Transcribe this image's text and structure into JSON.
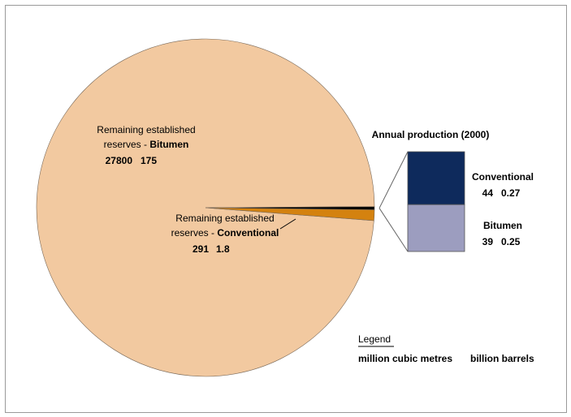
{
  "chart_data": {
    "type": "pie",
    "units": {
      "primary": "million cubic metres",
      "secondary": "billion barrels"
    },
    "slices": [
      {
        "key": "bitumen_reserves",
        "label_line1": "Remaining established",
        "label_prefix": "reserves - ",
        "label_bold": "Bitumen",
        "value": 27800,
        "value_label": "27800",
        "secondary_value": 175,
        "secondary_label": "175",
        "color": "#F2C9A0"
      },
      {
        "key": "conventional_reserves",
        "label_line1": "Remaining established",
        "label_prefix": "reserves - ",
        "label_bold": "Conventional",
        "value": 291,
        "value_label": "291",
        "secondary_value": 1.8,
        "secondary_label": "1.8",
        "color": "#D4820F"
      },
      {
        "key": "annual_production",
        "value": 83,
        "color": "#000000"
      }
    ],
    "breakout": {
      "title": "Annual production (2000)",
      "segments": [
        {
          "key": "conventional",
          "label": "Conventional",
          "value": 44,
          "value_label": "44",
          "secondary_value": 0.27,
          "secondary_label": "0.27",
          "color": "#0E2A5C"
        },
        {
          "key": "bitumen",
          "label": "Bitumen",
          "value": 39,
          "value_label": "39",
          "secondary_value": 0.25,
          "secondary_label": "0.25",
          "color": "#9C9DBF"
        }
      ]
    },
    "legend": {
      "title": "Legend",
      "primary_label": "million cubic metres",
      "secondary_label": "billion barrels"
    },
    "colors": {
      "secondary_text": "#D4820F",
      "primary_text": "#000000",
      "outline": "#7a6a5a"
    }
  }
}
